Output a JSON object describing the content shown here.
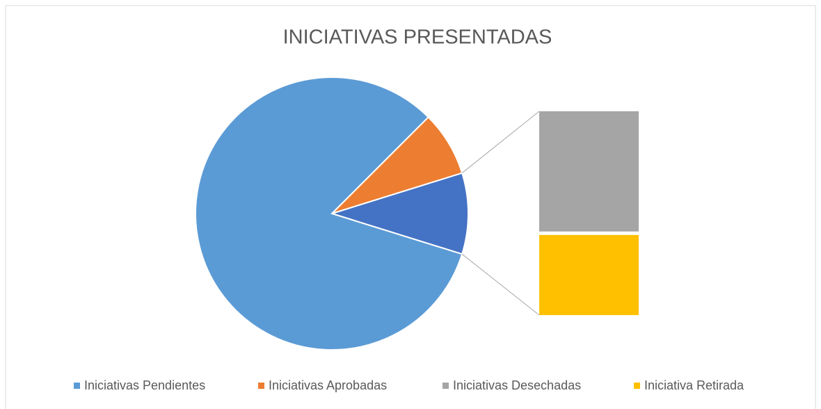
{
  "chart_data": {
    "type": "bar_of_pie",
    "title": "INICIATIVAS PRESENTADAS",
    "categories": [
      "Iniciativas Pendientes",
      "Iniciativas Aprobadas",
      "Iniciativas Desechadas",
      "Iniciativa Retirada"
    ],
    "values": [
      43,
      4,
      3,
      2
    ],
    "colors": [
      "#5b9bd5",
      "#ed7d31",
      "#a5a5a5",
      "#ffc000"
    ],
    "other_color": "#4472c4",
    "secondary_count": 2,
    "legend": "bottom"
  }
}
